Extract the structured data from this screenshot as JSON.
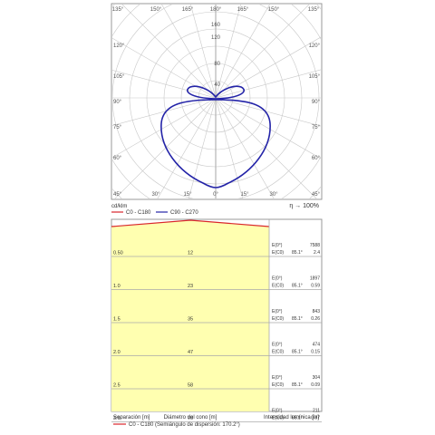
{
  "polar": {
    "angle_labels_top": [
      "135°",
      "150°",
      "165°",
      "180°",
      "165°",
      "150°",
      "135°"
    ],
    "angle_labels_left": [
      "120°",
      "105°",
      "90°",
      "75°",
      "60°",
      "45°"
    ],
    "angle_labels_right": [
      "120°",
      "105°",
      "90°",
      "75°",
      "60°",
      "45°"
    ],
    "angle_labels_bottom": [
      "30°",
      "15°",
      "0°",
      "15°",
      "30°"
    ],
    "radial_labels": [
      "160",
      "120",
      "80",
      "40"
    ],
    "unit_label": "cd/klm",
    "efficiency_label": "η → 100%",
    "legend": [
      {
        "label": "C0 - C180",
        "color": "#d9262b"
      },
      {
        "label": "C90 - C270",
        "color": "#2424a8"
      }
    ]
  },
  "cone": {
    "rows": [
      {
        "height": "0.50",
        "diameter": "12",
        "e0_label": "E(0°)",
        "ec0_label": "E(C0)",
        "angle": "85.1°",
        "e0": "7588",
        "ec0": "2.4"
      },
      {
        "height": "1.0",
        "diameter": "23",
        "e0_label": "E(0°)",
        "ec0_label": "E(C0)",
        "angle": "85.1°",
        "e0": "1897",
        "ec0": "0.59"
      },
      {
        "height": "1.5",
        "diameter": "35",
        "e0_label": "E(0°)",
        "ec0_label": "E(C0)",
        "angle": "85.1°",
        "e0": "843",
        "ec0": "0.26"
      },
      {
        "height": "2.0",
        "diameter": "47",
        "e0_label": "E(0°)",
        "ec0_label": "E(C0)",
        "angle": "85.1°",
        "e0": "474",
        "ec0": "0.15"
      },
      {
        "height": "2.5",
        "diameter": "58",
        "e0_label": "E(0°)",
        "ec0_label": "E(C0)",
        "angle": "85.1°",
        "e0": "304",
        "ec0": "0.09"
      },
      {
        "height": "3.0",
        "diameter": "70",
        "e0_label": "E(0°)",
        "ec0_label": "E(C0)",
        "angle": "85.1°",
        "e0": "211",
        "ec0": "0.07"
      }
    ],
    "footer_left": "Separación [m]",
    "footer_center": "Diámetro del cono [m]",
    "footer_right": "Intensidad lumínica [lx]",
    "legend_label": "C0 - C180 (Semiángulo de dispersión: 170.2°)",
    "legend_color": "#d9262b"
  }
}
